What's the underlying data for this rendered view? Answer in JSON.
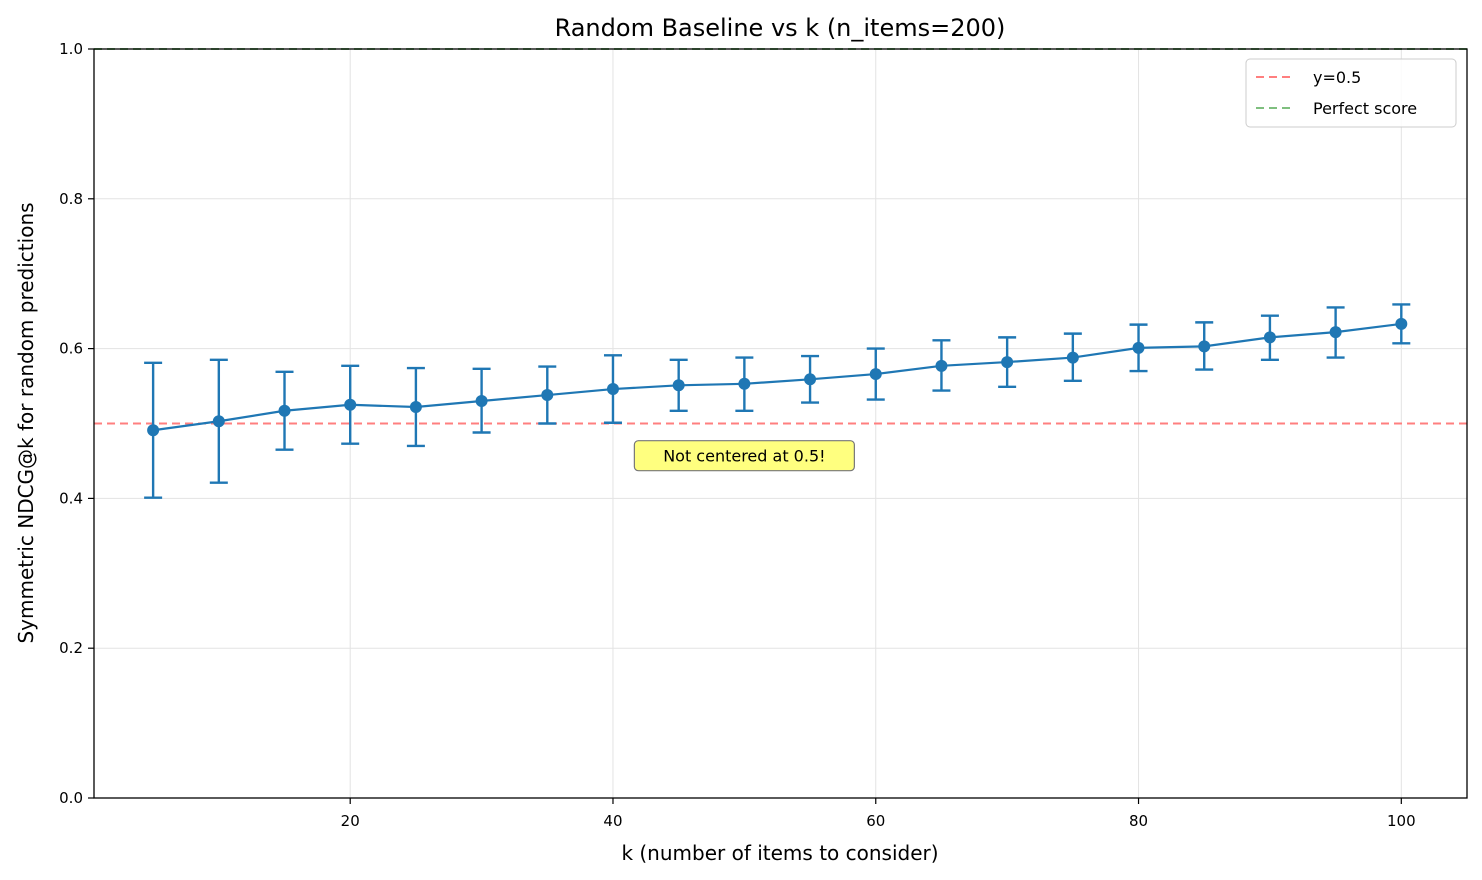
{
  "chart_data": {
    "type": "line",
    "title": "Random Baseline vs k (n_items=200)",
    "xlabel": "k (number of items to consider)",
    "ylabel": "Symmetric NDCG@k for random predictions",
    "xlim": [
      0.5,
      105
    ],
    "ylim": [
      0.0,
      1.0
    ],
    "xticks": [
      20,
      40,
      60,
      80,
      100
    ],
    "yticks": [
      0.0,
      0.2,
      0.4,
      0.6,
      0.8,
      1.0
    ],
    "xtick_labels": [
      "20",
      "40",
      "60",
      "80",
      "100"
    ],
    "ytick_labels": [
      "0.0",
      "0.2",
      "0.4",
      "0.6",
      "0.8",
      "1.0"
    ],
    "grid": true,
    "legend_position": "top-right",
    "series": [
      {
        "color": "#1f77b4",
        "x": [
          5,
          10,
          15,
          20,
          25,
          30,
          35,
          40,
          45,
          50,
          55,
          60,
          65,
          70,
          75,
          80,
          85,
          90,
          95,
          100
        ],
        "y": [
          0.491,
          0.503,
          0.517,
          0.525,
          0.522,
          0.53,
          0.538,
          0.546,
          0.551,
          0.553,
          0.559,
          0.566,
          0.577,
          0.582,
          0.588,
          0.601,
          0.603,
          0.615,
          0.622,
          0.633
        ],
        "y_lower": [
          0.401,
          0.421,
          0.465,
          0.473,
          0.47,
          0.488,
          0.5,
          0.501,
          0.517,
          0.517,
          0.528,
          0.532,
          0.544,
          0.549,
          0.557,
          0.57,
          0.572,
          0.585,
          0.588,
          0.607
        ],
        "y_upper": [
          0.581,
          0.585,
          0.569,
          0.577,
          0.574,
          0.573,
          0.576,
          0.591,
          0.585,
          0.588,
          0.59,
          0.6,
          0.611,
          0.615,
          0.62,
          0.632,
          0.635,
          0.644,
          0.655,
          0.659
        ]
      }
    ],
    "reference_lines": [
      {
        "name": "y=0.5",
        "y": 0.5,
        "color": "#ff7f7f",
        "style": "dashed"
      },
      {
        "name": "Perfect score",
        "y": 1.0,
        "color": "#7fbf7f",
        "style": "dashed"
      }
    ],
    "annotations": [
      {
        "text": "Not centered at 0.5!",
        "x": 50,
        "y": 0.457,
        "background": "#ffff7f"
      }
    ]
  }
}
